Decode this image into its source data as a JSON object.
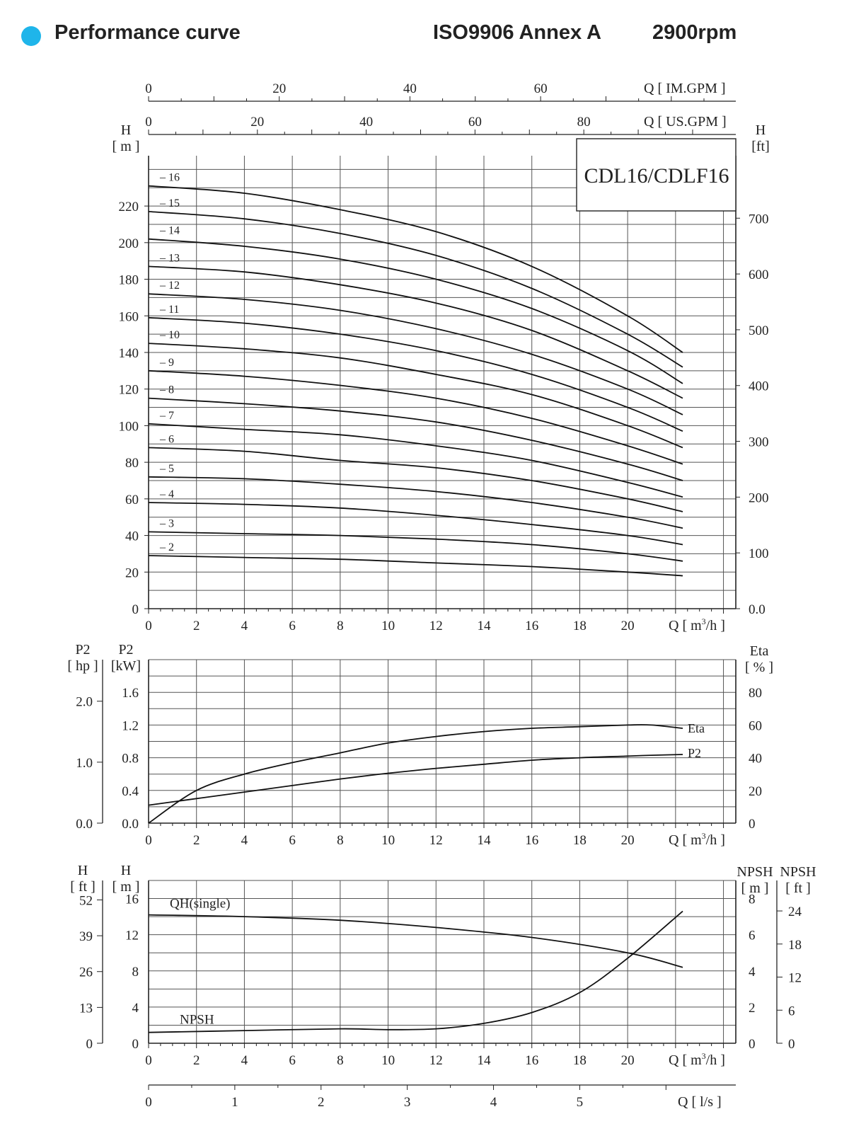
{
  "header": {
    "title": "Performance curve",
    "standard": "ISO9906 Annex A",
    "speed": "2900rpm",
    "bullet_color": "#1fb5ea"
  },
  "chart_data": [
    {
      "type": "line",
      "title": "CDL16/CDLF16",
      "xlabel": "Q [ m³/h ]",
      "ylabel": "H [ m ]",
      "ylabel_right": "H [ft]",
      "xlim": [
        0,
        24
      ],
      "ylim": [
        0,
        240
      ],
      "x_ticks": [
        0,
        2,
        4,
        6,
        8,
        10,
        12,
        14,
        16,
        18,
        20
      ],
      "y_ticks": [
        0,
        20,
        40,
        60,
        80,
        100,
        120,
        140,
        160,
        180,
        200,
        220
      ],
      "y_right_ticks": [
        "0.0",
        "100",
        "200",
        "300",
        "400",
        "500",
        "600",
        "700"
      ],
      "x_top_axes": [
        {
          "label": "Q [ US.GPM ]",
          "ticks": [
            0,
            20,
            40,
            60,
            80
          ]
        },
        {
          "label": "Q [ IM.GPM ]",
          "ticks": [
            0,
            20,
            40,
            60
          ]
        }
      ],
      "x": [
        0,
        4,
        8,
        12,
        16,
        20,
        22.3
      ],
      "series": [
        {
          "name": "16",
          "values": [
            231,
            227,
            218,
            206,
            187,
            160,
            140
          ]
        },
        {
          "name": "15",
          "values": [
            217,
            213,
            205,
            193,
            175,
            150,
            132
          ]
        },
        {
          "name": "14",
          "values": [
            202,
            198,
            191,
            180,
            164,
            141,
            123
          ]
        },
        {
          "name": "13",
          "values": [
            187,
            184,
            177,
            167,
            152,
            130,
            115
          ]
        },
        {
          "name": "12",
          "values": [
            172,
            169,
            163,
            153,
            139,
            120,
            106
          ]
        },
        {
          "name": "11",
          "values": [
            159,
            156,
            150,
            141,
            128,
            110,
            97
          ]
        },
        {
          "name": "10",
          "values": [
            145,
            142,
            137,
            128,
            117,
            100,
            88
          ]
        },
        {
          "name": "9",
          "values": [
            130,
            127,
            122,
            115,
            104,
            89,
            79
          ]
        },
        {
          "name": "8",
          "values": [
            115,
            112,
            108,
            102,
            92,
            79,
            70
          ]
        },
        {
          "name": "7",
          "values": [
            101,
            98,
            95,
            89,
            81,
            69,
            61
          ]
        },
        {
          "name": "6",
          "values": [
            88,
            86,
            81,
            77,
            70,
            60,
            53
          ]
        },
        {
          "name": "5",
          "values": [
            72,
            71,
            68,
            64,
            58,
            50,
            44
          ]
        },
        {
          "name": "4",
          "values": [
            58,
            57,
            55,
            51,
            46,
            40,
            35
          ]
        },
        {
          "name": "3",
          "values": [
            42,
            41,
            40,
            38,
            35,
            30,
            26
          ]
        },
        {
          "name": "2",
          "values": [
            29,
            28,
            27,
            25,
            23,
            20,
            18
          ]
        }
      ]
    },
    {
      "type": "line",
      "xlabel": "Q [ m³/h ]",
      "ylabel": "P2 [kW]",
      "ylabel_hp": "P2 [ hp ]",
      "ylabel_right": "Eta [ % ]",
      "xlim": [
        0,
        24
      ],
      "ylim": [
        0,
        2
      ],
      "x_ticks": [
        0,
        2,
        4,
        6,
        8,
        10,
        12,
        14,
        16,
        18,
        20
      ],
      "y_ticks": [
        "0.0",
        "0.4",
        "0.8",
        "1.2",
        "1.6"
      ],
      "y_hp_ticks": [
        "0.0",
        "1.0",
        "2.0"
      ],
      "y_right_ticks": [
        "0",
        "20",
        "40",
        "60",
        "80"
      ],
      "x": [
        0,
        2,
        4,
        6,
        8,
        10,
        12,
        14,
        16,
        18,
        20,
        21,
        22.3
      ],
      "series": [
        {
          "name": "Eta",
          "values": [
            0,
            20,
            30,
            37,
            43,
            49,
            53,
            56,
            58,
            59,
            60,
            60,
            58
          ]
        },
        {
          "name": "P2",
          "values": [
            0.22,
            0.3,
            0.38,
            0.46,
            0.54,
            0.61,
            0.67,
            0.72,
            0.77,
            0.8,
            0.82,
            0.83,
            0.84
          ]
        }
      ]
    },
    {
      "type": "line",
      "xlabel": "Q [ m³/h ]",
      "xlabel_bottom": "Q [ l/s ]",
      "ylabel": "H [ m ]",
      "ylabel_ft": "H [ ft ]",
      "ylabel_right": "NPSH [ m ]",
      "ylabel_right_ft": "NPSH [ ft ]",
      "xlim": [
        0,
        24
      ],
      "ylim": [
        0,
        18
      ],
      "x_ticks": [
        0,
        2,
        4,
        6,
        8,
        10,
        12,
        14,
        16,
        18,
        20
      ],
      "ls_ticks": [
        0,
        1,
        2,
        3,
        4,
        5
      ],
      "y_ticks": [
        0,
        4,
        8,
        12,
        16
      ],
      "y_ft_ticks": [
        0,
        13,
        26,
        39,
        52
      ],
      "y_right_ticks": [
        0,
        2,
        4,
        6,
        8
      ],
      "y_right_ft_ticks": [
        0,
        6,
        12,
        18,
        24
      ],
      "series": [
        {
          "name": "QH(single)",
          "axis": "H [m]",
          "x": [
            0,
            4,
            8,
            12,
            16,
            20,
            22.3
          ],
          "values": [
            14.2,
            14,
            13.6,
            12.8,
            11.7,
            10.0,
            8.4
          ]
        },
        {
          "name": "NPSH",
          "axis": "NPSH [m]",
          "x": [
            0,
            4,
            8,
            10,
            12,
            14,
            16,
            18,
            20,
            22.3
          ],
          "values": [
            0.6,
            0.7,
            0.8,
            0.75,
            0.8,
            1.1,
            1.7,
            2.8,
            4.7,
            7.3
          ]
        }
      ]
    }
  ]
}
